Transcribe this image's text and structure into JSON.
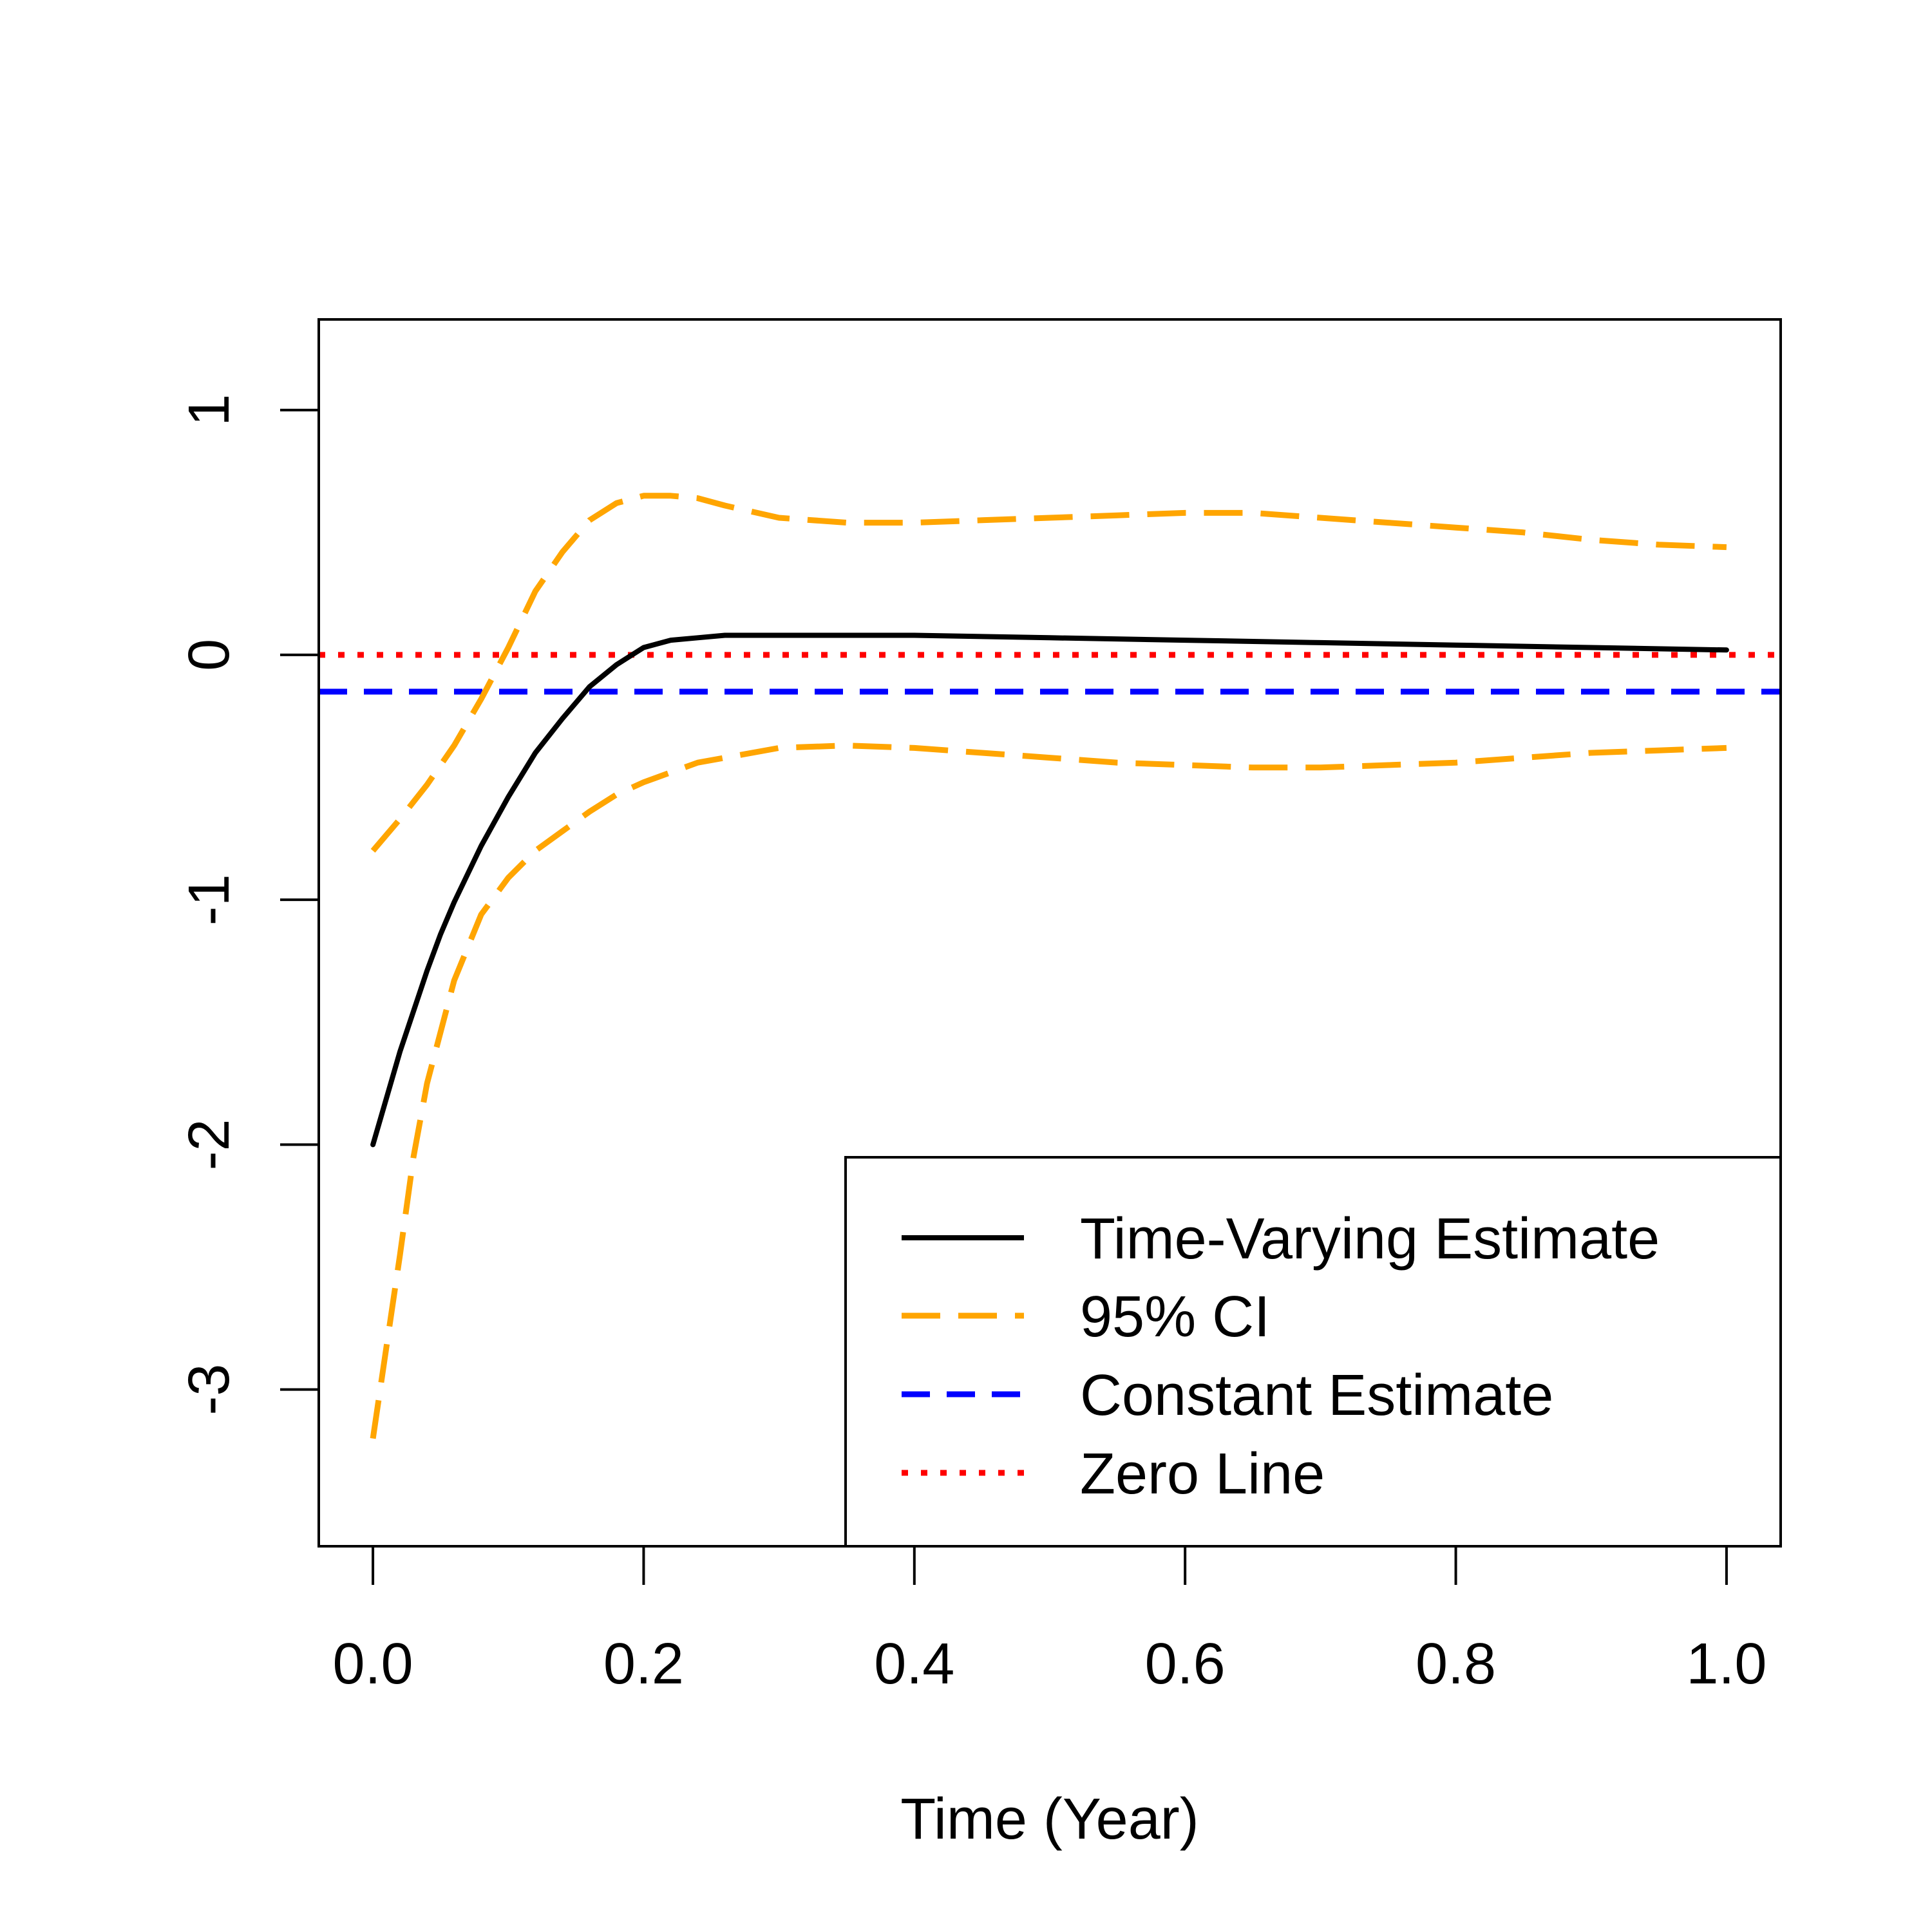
{
  "chart_data": {
    "type": "line",
    "title": "",
    "xlabel": "Time (Year)",
    "ylabel": "",
    "xlim": [
      -0.04,
      1.04
    ],
    "ylim": [
      -3.64,
      1.37
    ],
    "xticks": [
      {
        "value": 0.0,
        "label": "0.0"
      },
      {
        "value": 0.2,
        "label": "0.2"
      },
      {
        "value": 0.4,
        "label": "0.4"
      },
      {
        "value": 0.6,
        "label": "0.6"
      },
      {
        "value": 0.8,
        "label": "0.8"
      },
      {
        "value": 1.0,
        "label": "1.0"
      }
    ],
    "yticks": [
      {
        "value": -3,
        "label": "-3"
      },
      {
        "value": -2,
        "label": "-2"
      },
      {
        "value": -1,
        "label": "-1"
      },
      {
        "value": 0,
        "label": "0"
      },
      {
        "value": 1,
        "label": "1"
      }
    ],
    "grid": false,
    "legend_position": "bottom-right",
    "series": [
      {
        "key": "estimate",
        "name": "Time-Varying Estimate",
        "color": "#000000",
        "style": "solid",
        "x": [
          0,
          0.02,
          0.04,
          0.05,
          0.06,
          0.08,
          0.1,
          0.12,
          0.14,
          0.16,
          0.18,
          0.2,
          0.22,
          0.24,
          0.26,
          0.3,
          0.4,
          0.5,
          0.6,
          0.7,
          0.8,
          0.9,
          1.0
        ],
        "y": [
          -2.0,
          -1.62,
          -1.29,
          -1.14,
          -1.01,
          -0.78,
          -0.58,
          -0.4,
          -0.26,
          -0.13,
          -0.04,
          0.03,
          0.06,
          0.07,
          0.08,
          0.08,
          0.08,
          0.07,
          0.06,
          0.05,
          0.04,
          0.03,
          0.02
        ]
      },
      {
        "key": "ci_upper",
        "name": "95% CI",
        "color": "#FFA500",
        "style": "dashed",
        "x": [
          0,
          0.02,
          0.04,
          0.06,
          0.08,
          0.1,
          0.12,
          0.14,
          0.16,
          0.18,
          0.2,
          0.22,
          0.24,
          0.26,
          0.3,
          0.35,
          0.4,
          0.45,
          0.5,
          0.55,
          0.6,
          0.65,
          0.7,
          0.75,
          0.8,
          0.85,
          0.9,
          0.95,
          1.0
        ],
        "y": [
          -0.8,
          -0.67,
          -0.53,
          -0.37,
          -0.18,
          0.03,
          0.26,
          0.42,
          0.55,
          0.62,
          0.65,
          0.65,
          0.64,
          0.61,
          0.56,
          0.54,
          0.54,
          0.55,
          0.56,
          0.57,
          0.58,
          0.58,
          0.56,
          0.54,
          0.52,
          0.5,
          0.47,
          0.45,
          0.44
        ]
      },
      {
        "key": "ci_lower",
        "name": "95% CI",
        "color": "#FFA500",
        "style": "dashed",
        "x": [
          0,
          0.02,
          0.03,
          0.04,
          0.06,
          0.08,
          0.1,
          0.12,
          0.14,
          0.16,
          0.18,
          0.2,
          0.22,
          0.24,
          0.26,
          0.3,
          0.35,
          0.4,
          0.45,
          0.5,
          0.55,
          0.6,
          0.65,
          0.7,
          0.75,
          0.8,
          0.85,
          0.9,
          0.95,
          1.0
        ],
        "y": [
          -3.2,
          -2.45,
          -2.05,
          -1.75,
          -1.33,
          -1.06,
          -0.91,
          -0.8,
          -0.72,
          -0.64,
          -0.57,
          -0.52,
          -0.48,
          -0.44,
          -0.42,
          -0.38,
          -0.37,
          -0.38,
          -0.4,
          -0.42,
          -0.44,
          -0.45,
          -0.46,
          -0.46,
          -0.45,
          -0.44,
          -0.42,
          -0.4,
          -0.39,
          -0.38
        ]
      },
      {
        "key": "constant",
        "name": "Constant Estimate",
        "color": "#0000FF",
        "style": "longdash",
        "hline": -0.15
      },
      {
        "key": "zero",
        "name": "Zero Line",
        "color": "#FF0000",
        "style": "dotted",
        "hline": 0
      }
    ],
    "legend": [
      {
        "label": "Time-Varying Estimate",
        "color": "#000000",
        "style": "solid"
      },
      {
        "label": "95% CI",
        "color": "#FFA500",
        "style": "dashed"
      },
      {
        "label": "Constant Estimate",
        "color": "#0000FF",
        "style": "longdash"
      },
      {
        "label": "Zero Line",
        "color": "#FF0000",
        "style": "dotted"
      }
    ]
  }
}
